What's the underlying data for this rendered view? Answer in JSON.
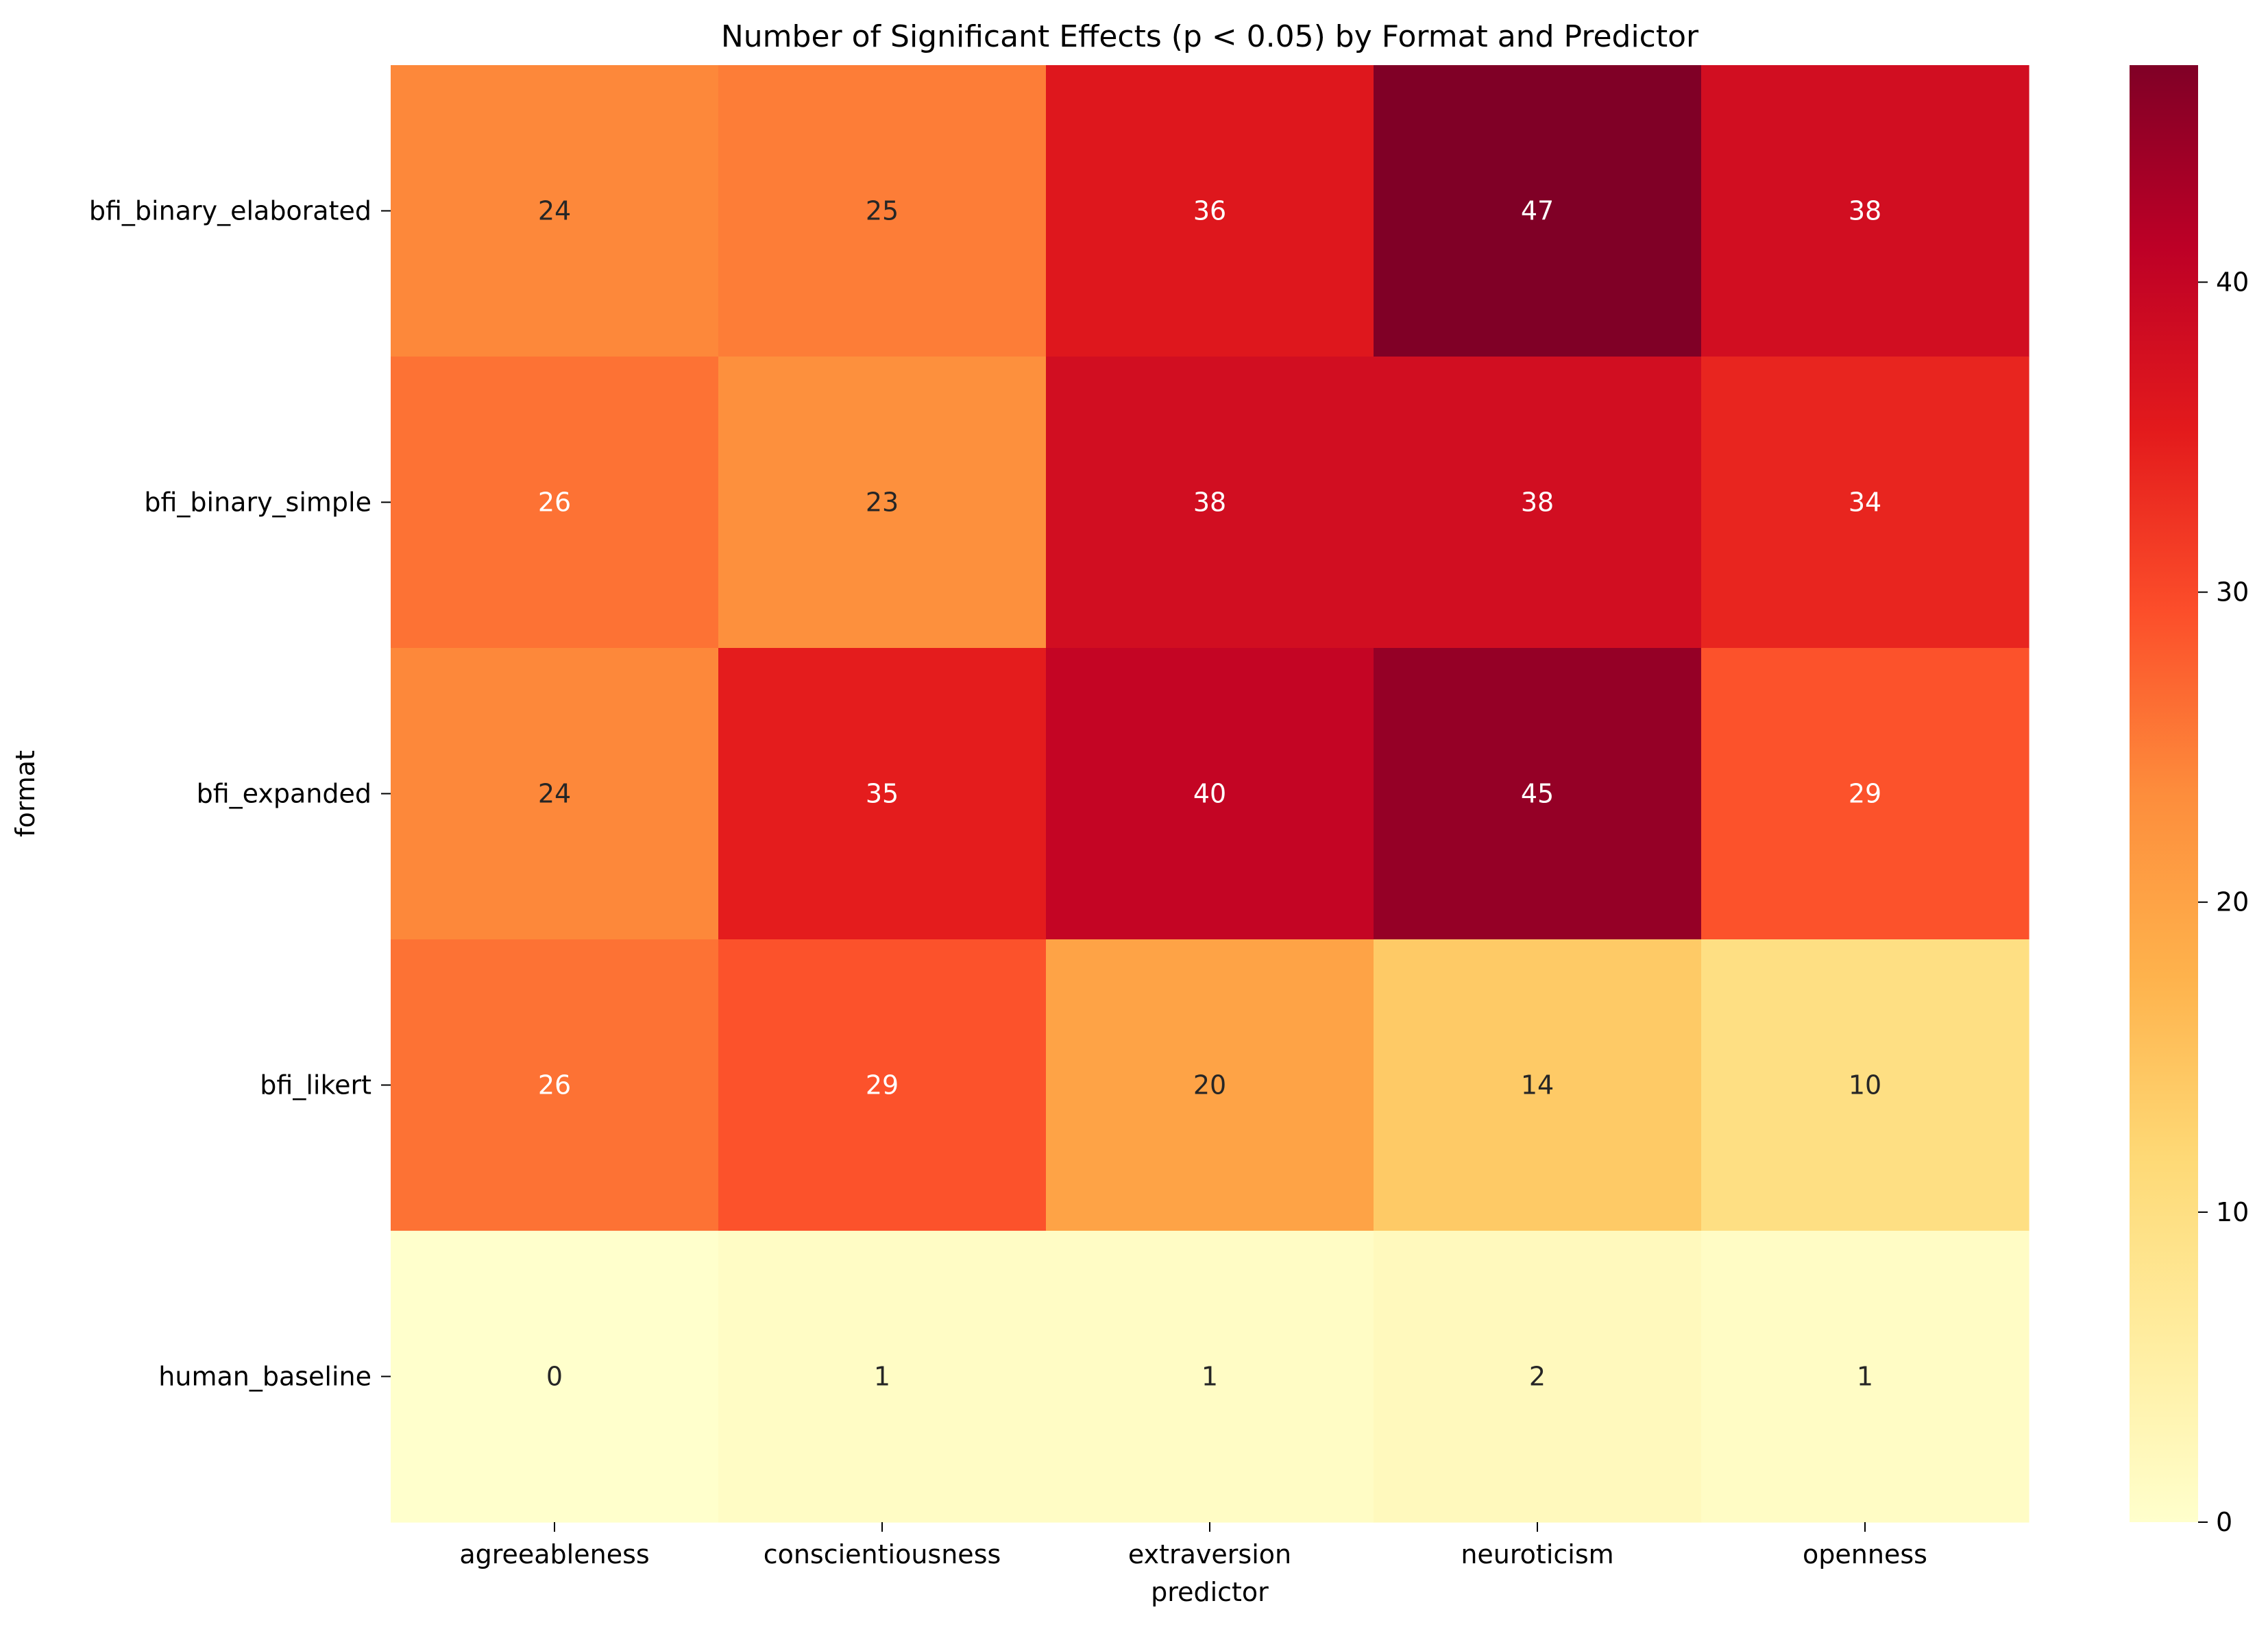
{
  "chart_data": {
    "type": "heatmap",
    "title": "Number of Significant Effects (p < 0.05) by Format and Predictor",
    "xlabel": "predictor",
    "ylabel": "format",
    "x_categories": [
      "agreeableness",
      "conscientiousness",
      "extraversion",
      "neuroticism",
      "openness"
    ],
    "y_categories": [
      "bfi_binary_elaborated",
      "bfi_binary_simple",
      "bfi_expanded",
      "bfi_likert",
      "human_baseline"
    ],
    "values": [
      [
        24,
        25,
        36,
        47,
        38
      ],
      [
        26,
        23,
        38,
        38,
        34
      ],
      [
        24,
        35,
        40,
        45,
        29
      ],
      [
        26,
        29,
        20,
        14,
        10
      ],
      [
        0,
        1,
        1,
        2,
        1
      ]
    ],
    "colorscale": "YlOrRd",
    "color_range": [
      0,
      47
    ],
    "colorbar_ticks": [
      "0",
      "10",
      "20",
      "30",
      "40"
    ],
    "annotations": true
  }
}
